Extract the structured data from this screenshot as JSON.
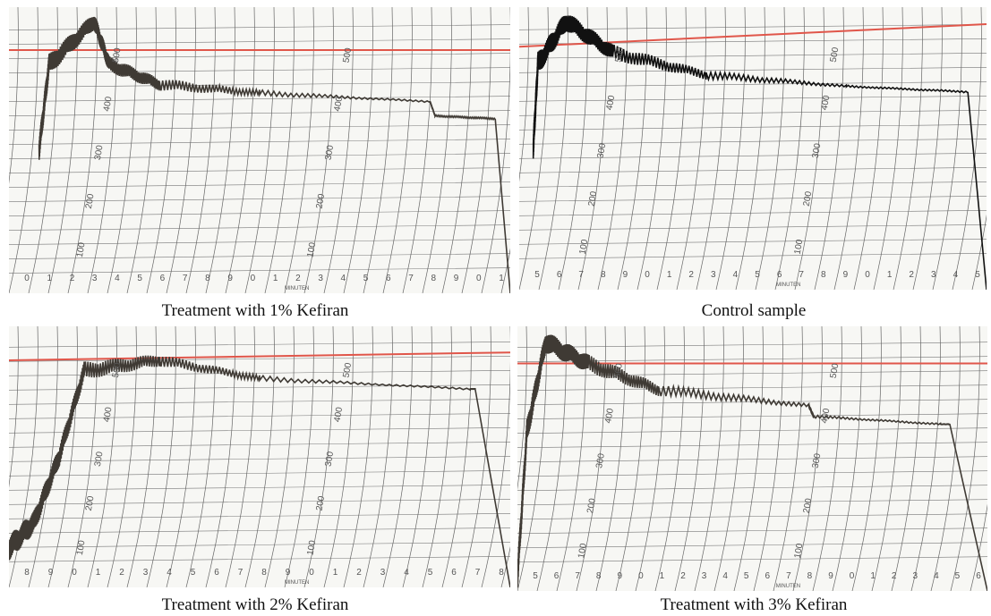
{
  "panels": [
    {
      "caption": "Treatment with 1% Kefiran",
      "y_labels": [
        "500",
        "400",
        "300",
        "200",
        "100"
      ],
      "x_labels": [
        "0",
        "1",
        "2",
        "3",
        "4",
        "5",
        "6",
        "7",
        "8",
        "9",
        "0",
        "1",
        "2",
        "3",
        "4",
        "5",
        "6",
        "7",
        "8",
        "9",
        "0",
        "1"
      ],
      "x_unit": "MINUTEN"
    },
    {
      "caption": "Control sample",
      "y_labels": [
        "500",
        "400",
        "300",
        "200",
        "100"
      ],
      "x_labels": [
        "5",
        "6",
        "7",
        "8",
        "9",
        "0",
        "1",
        "2",
        "3",
        "4",
        "5",
        "6",
        "7",
        "8",
        "9",
        "0",
        "1",
        "2",
        "3",
        "4",
        "5"
      ],
      "x_unit": "MINUTEN"
    },
    {
      "caption": "Treatment with 2% Kefiran",
      "y_labels": [
        "500",
        "400",
        "300",
        "200",
        "100"
      ],
      "x_labels": [
        "8",
        "9",
        "0",
        "1",
        "2",
        "3",
        "4",
        "5",
        "6",
        "7",
        "8",
        "9",
        "0",
        "1",
        "2",
        "3",
        "4",
        "5",
        "6",
        "7",
        "8"
      ],
      "x_unit": "MINUTEN"
    },
    {
      "caption": "Treatment with 3% Kefiran",
      "y_labels": [
        "500",
        "400",
        "300",
        "200",
        "100"
      ],
      "x_labels": [
        "5",
        "6",
        "7",
        "8",
        "9",
        "0",
        "1",
        "2",
        "3",
        "4",
        "5",
        "6",
        "7",
        "8",
        "9",
        "0",
        "1",
        "2",
        "3",
        "4",
        "5",
        "6"
      ],
      "x_unit": "MINUTEN"
    }
  ]
}
